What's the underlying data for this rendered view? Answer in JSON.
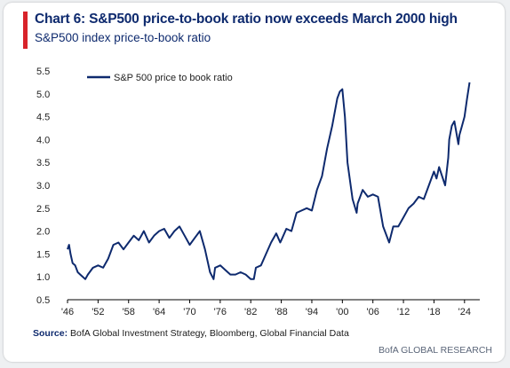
{
  "header": {
    "title": "Chart 6: S&P500 price-to-book ratio now exceeds March 2000 high",
    "subtitle": "S&P500 index price-to-book ratio"
  },
  "source": {
    "label": "Source:",
    "text": "BofA Global Investment Strategy, Bloomberg, Global Financial Data"
  },
  "footer": {
    "brand": "BofA GLOBAL RESEARCH"
  },
  "colors": {
    "accent": "#d8232a",
    "line": "#0e2a6e",
    "title": "#0e2a6e"
  },
  "chart_data": {
    "type": "line",
    "title": "",
    "xlabel": "",
    "ylabel": "",
    "xlim": [
      1946,
      2027
    ],
    "ylim": [
      0.5,
      5.5
    ],
    "y_ticks": [
      "0.5",
      "1.0",
      "1.5",
      "2.0",
      "2.5",
      "3.0",
      "3.5",
      "4.0",
      "4.5",
      "5.0",
      "5.5"
    ],
    "x_ticks": [
      "'46",
      "'52",
      "'58",
      "'64",
      "'70",
      "'76",
      "'82",
      "'88",
      "'94",
      "'00",
      "'06",
      "'12",
      "'18",
      "'24"
    ],
    "grid": false,
    "legend_position": "top-left",
    "series": [
      {
        "name": "S&P 500 price to book ratio",
        "x": [
          1946,
          1946.3,
          1946.6,
          1947,
          1947.5,
          1948,
          1948.5,
          1949,
          1949.5,
          1950,
          1951,
          1952,
          1953,
          1954,
          1955,
          1956,
          1957,
          1958,
          1959,
          1960,
          1961,
          1962,
          1963,
          1964,
          1965,
          1966,
          1967,
          1968,
          1969,
          1970,
          1971,
          1972,
          1973,
          1974,
          1974.7,
          1975,
          1976,
          1977,
          1978,
          1979,
          1980,
          1981,
          1982,
          1982.6,
          1983,
          1984,
          1985,
          1986,
          1987,
          1987.8,
          1988,
          1989,
          1990,
          1991,
          1992,
          1993,
          1994,
          1995,
          1996,
          1997,
          1998,
          1999,
          1999.5,
          2000,
          2000.5,
          2001,
          2002,
          2002.8,
          2003,
          2004,
          2005,
          2006,
          2007,
          2008,
          2009.2,
          2010,
          2011,
          2012,
          2013,
          2014,
          2015,
          2016,
          2017,
          2018,
          2018.5,
          2019,
          2020.2,
          2020.8,
          2021,
          2021.5,
          2022,
          2022.8,
          2023,
          2023.5,
          2024,
          2024.5,
          2025
        ],
        "y": [
          1.6,
          1.7,
          1.5,
          1.3,
          1.25,
          1.1,
          1.05,
          1.0,
          0.95,
          1.05,
          1.2,
          1.25,
          1.2,
          1.4,
          1.7,
          1.75,
          1.6,
          1.75,
          1.9,
          1.8,
          2.0,
          1.75,
          1.9,
          2.0,
          2.05,
          1.85,
          2.0,
          2.1,
          1.9,
          1.7,
          1.85,
          2.0,
          1.6,
          1.1,
          0.95,
          1.2,
          1.25,
          1.15,
          1.05,
          1.05,
          1.1,
          1.05,
          0.95,
          0.95,
          1.2,
          1.25,
          1.5,
          1.75,
          1.95,
          1.75,
          1.8,
          2.05,
          2.0,
          2.4,
          2.45,
          2.5,
          2.45,
          2.9,
          3.2,
          3.8,
          4.3,
          4.9,
          5.05,
          5.1,
          4.5,
          3.5,
          2.7,
          2.4,
          2.6,
          2.9,
          2.75,
          2.8,
          2.75,
          2.1,
          1.75,
          2.1,
          2.1,
          2.3,
          2.5,
          2.6,
          2.75,
          2.7,
          3.0,
          3.3,
          3.15,
          3.4,
          3.0,
          3.6,
          4.0,
          4.3,
          4.4,
          3.9,
          4.1,
          4.3,
          4.5,
          4.9,
          5.25
        ]
      }
    ]
  }
}
